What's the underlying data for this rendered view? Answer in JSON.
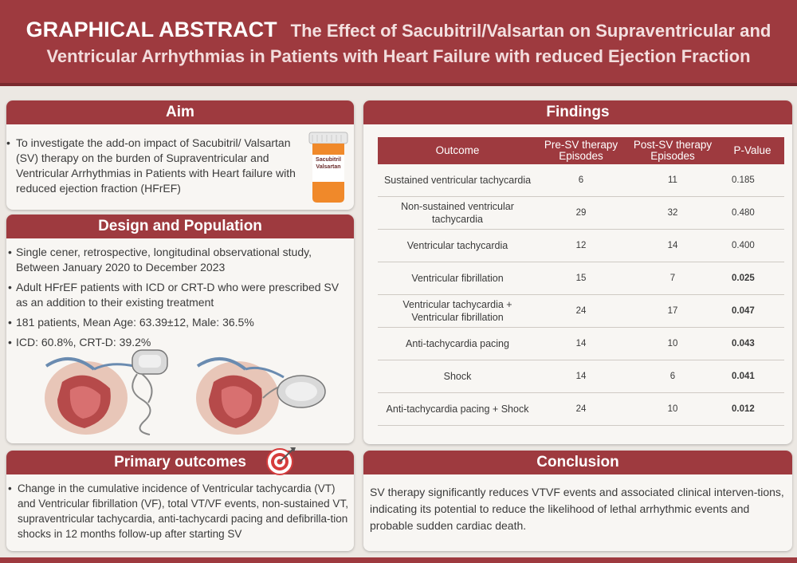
{
  "header": {
    "label": "GRAPHICAL ABSTRACT",
    "title_line1": "The Effect of Sacubitril/Valsartan on Supraventricular and",
    "title_line2": "Ventricular Arrhythmias in Patients with Heart Failure  with reduced Ejection Fraction"
  },
  "aim": {
    "title": "Aim",
    "text": "To investigate the add-on impact of Sacubitril/ Valsartan (SV)  therapy on  the burden of Supraventricular and Ventricular Arrhythmias in Patients with Heart failure with reduced ejection fraction (HFrEF)",
    "bottle_label_1": "Sacubitril",
    "bottle_label_2": "Valsartan"
  },
  "design": {
    "title": "Design and Population",
    "bullets": [
      "Single cener, retrospective, longitudinal observational study, Between January 2020 to December 2023",
      " Adult HFrEF patients with ICD or CRT-D who were prescribed SV as an addition to their existing treatment",
      "181 patients, Mean Age: 63.39±12, Male: 36.5%",
      "ICD: 60.8%, CRT-D: 39.2%"
    ]
  },
  "findings": {
    "title": "Findings",
    "columns": [
      "Outcome",
      "Pre-SV therapy Episodes",
      "Post-SV therapy Episodes",
      "P-Value"
    ],
    "rows": [
      {
        "outcome": "Sustained ventricular tachycardia",
        "pre": "6",
        "post": "11",
        "p": "0.185",
        "sig": false
      },
      {
        "outcome": "Non-sustained ventricular tachycardia",
        "pre": "29",
        "post": "32",
        "p": "0.480",
        "sig": false
      },
      {
        "outcome": "Ventricular tachycardia",
        "pre": "12",
        "post": "14",
        "p": "0.400",
        "sig": false
      },
      {
        "outcome": "Ventricular fibrillation",
        "pre": "15",
        "post": "7",
        "p": "0.025",
        "sig": true
      },
      {
        "outcome": "Ventricular tachycardia + Ventricular fibrillation",
        "pre": "24",
        "post": "17",
        "p": "0.047",
        "sig": true
      },
      {
        "outcome": "Anti-tachycardia pacing",
        "pre": "14",
        "post": "10",
        "p": "0.043",
        "sig": true
      },
      {
        "outcome": "Shock",
        "pre": "14",
        "post": "6",
        "p": "0.041",
        "sig": true
      },
      {
        "outcome": "Anti-tachycardia pacing + Shock",
        "pre": "24",
        "post": "10",
        "p": "0.012",
        "sig": true
      }
    ]
  },
  "primary": {
    "title": "Primary outcomes",
    "text": "Change in the cumulative incidence of  Ventricular tachycardia (VT) and Ventricular fibrillation (VF), total VT/VF events, non-sustained VT, supraventricular tachycardia, anti-tachycardi pacing and defibrilla-tion shocks in 12 months follow-up after starting SV"
  },
  "conclusion": {
    "title": "Conclusion",
    "text": "SV therapy significantly reduces VTVF events and associated clinical interven-tions, indicating its potential to reduce the likelihood of lethal arrhythmic events and probable sudden cardiac death."
  },
  "colors": {
    "accent": "#9e3a3f",
    "background": "#ece8e3",
    "panel": "#f8f6f3",
    "bottle": "#f0892a"
  }
}
